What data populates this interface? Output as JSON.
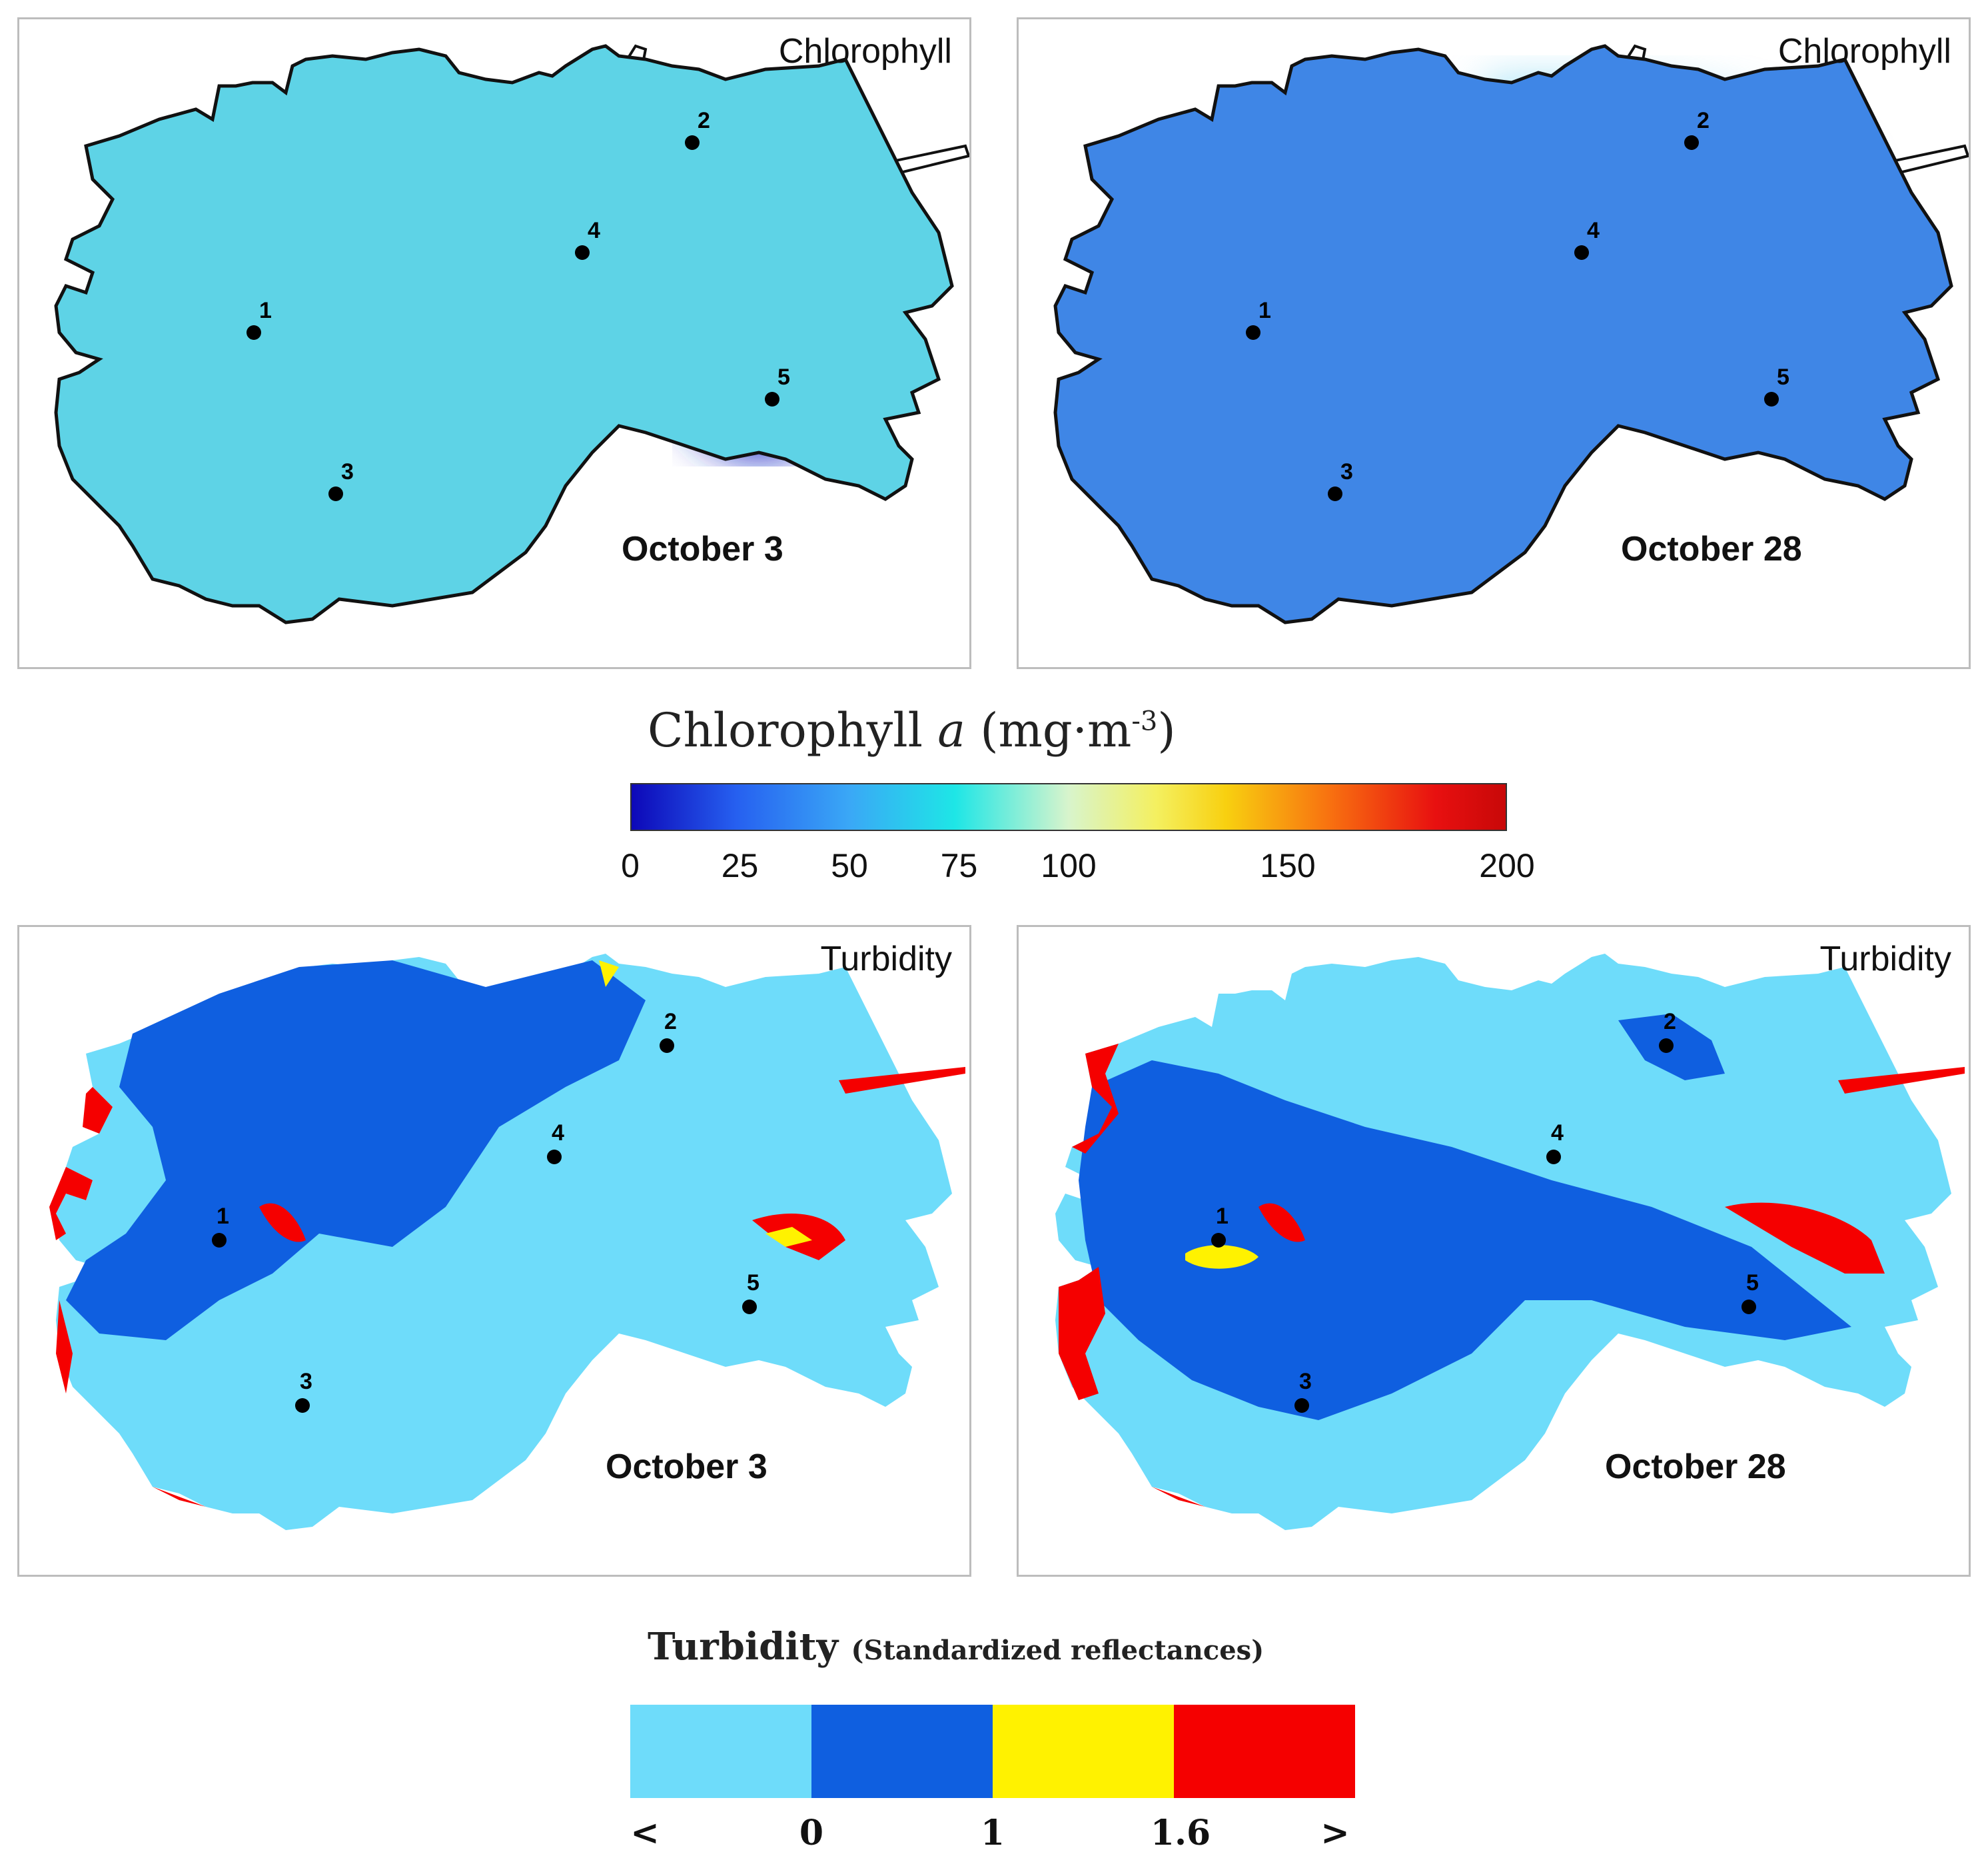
{
  "chlorophyll_panels": [
    {
      "label": "Chlorophyll",
      "date": "October 3",
      "base_color": "#5ed3e6",
      "accent_color": "#d8e840",
      "patch_color": "#2230c8"
    },
    {
      "label": "Chlorophyll",
      "date": "October 28",
      "base_color": "#3f86e6",
      "accent_color": "#53c8ee",
      "patch_color": "#2d49d6"
    }
  ],
  "turbidity_panels": [
    {
      "label": "Turbidity",
      "date": "October 3"
    },
    {
      "label": "Turbidity",
      "date": "October 28"
    }
  ],
  "stations": [
    "1",
    "2",
    "3",
    "4",
    "5"
  ],
  "chlorophyll_scale": {
    "title_main": "Chlorophyll ",
    "title_italic": "a",
    "title_unit": " (mg·m",
    "title_sup": "-3",
    "title_close": ")",
    "min": 0,
    "max": 200,
    "ticks": [
      "0",
      "25",
      "50",
      "75",
      "100",
      "150",
      "200"
    ]
  },
  "turbidity_scale": {
    "title": "Turbidity",
    "subtitle": "(Standardized reflectances)",
    "classes": [
      {
        "color": "#6edcfa"
      },
      {
        "color": "#0f5fe0"
      },
      {
        "color": "#fff200"
      },
      {
        "color": "#f50000"
      }
    ],
    "ticks": [
      "<",
      "0",
      "1",
      "1.6",
      ">"
    ]
  },
  "colors": {
    "turbidity_light": "#6edcfa",
    "turbidity_dark": "#0f5fe0",
    "turbidity_yellow": "#fff200",
    "turbidity_red": "#f50000"
  }
}
